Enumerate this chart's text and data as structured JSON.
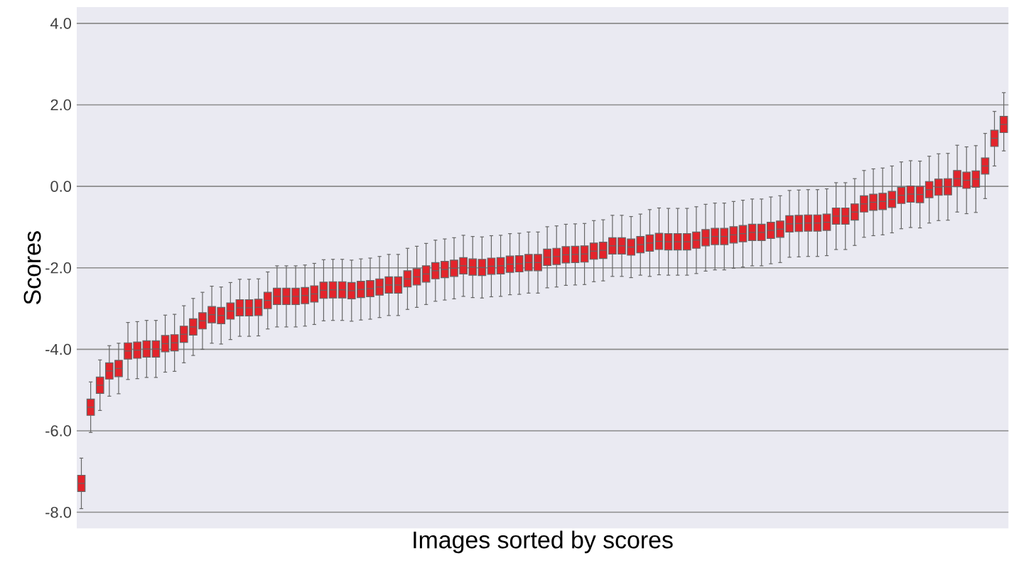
{
  "chart_data": {
    "type": "box",
    "xlabel": "Images sorted by scores",
    "ylabel": "Scores",
    "color": "#e3242b",
    "grid": "y",
    "tick_labels": "y",
    "ylim": [
      -8.4,
      4.4
    ],
    "yticks": [
      {
        "value": -8,
        "label": "-8.0"
      },
      {
        "value": -6,
        "label": "-6.0"
      },
      {
        "value": -4,
        "label": "-4.0"
      },
      {
        "value": -2,
        "label": "-2.0"
      },
      {
        "value": 0,
        "label": "0.0"
      },
      {
        "value": 2,
        "label": "2.0"
      },
      {
        "value": 4,
        "label": "4.0"
      }
    ],
    "categories": [
      null,
      null,
      null,
      null,
      null,
      null,
      null,
      null,
      null,
      null,
      null,
      null,
      null,
      null,
      null,
      null,
      null,
      null,
      null,
      null,
      null,
      null,
      null,
      null,
      null,
      null,
      null,
      null,
      null,
      null,
      null,
      null,
      null,
      null,
      null,
      null,
      null,
      null,
      null,
      null,
      null,
      null,
      null,
      null,
      null,
      null,
      null,
      null,
      null,
      null,
      null,
      null,
      null,
      null,
      null,
      null,
      null,
      null,
      null,
      null,
      null,
      null,
      null,
      null,
      null,
      null,
      null,
      null,
      null,
      null,
      null,
      null,
      null,
      null,
      null,
      null,
      null,
      null,
      null,
      null,
      null,
      null,
      null,
      null,
      null,
      null,
      null,
      null,
      null,
      null,
      null,
      null,
      null,
      null,
      null,
      null,
      null,
      null,
      null,
      null
    ],
    "boxes": [
      {
        "low": -7.91,
        "q1": -7.49,
        "median": -7.29,
        "q3": -7.09,
        "high": -6.67
      },
      {
        "low": -6.04,
        "q1": -5.62,
        "median": -5.42,
        "q3": -5.22,
        "high": -4.8
      },
      {
        "low": -5.5,
        "q1": -5.08,
        "median": -4.88,
        "q3": -4.68,
        "high": -4.26
      },
      {
        "low": -5.15,
        "q1": -4.73,
        "median": -4.53,
        "q3": -4.33,
        "high": -3.91
      },
      {
        "low": -5.09,
        "q1": -4.67,
        "median": -4.47,
        "q3": -4.27,
        "high": -3.85
      },
      {
        "low": -4.74,
        "q1": -4.24,
        "median": -4.04,
        "q3": -3.84,
        "high": -3.34
      },
      {
        "low": -4.72,
        "q1": -4.22,
        "median": -4.02,
        "q3": -3.82,
        "high": -3.32
      },
      {
        "low": -4.69,
        "q1": -4.19,
        "median": -3.99,
        "q3": -3.79,
        "high": -3.29
      },
      {
        "low": -4.69,
        "q1": -4.19,
        "median": -3.99,
        "q3": -3.79,
        "high": -3.29
      },
      {
        "low": -4.56,
        "q1": -4.06,
        "median": -3.86,
        "q3": -3.66,
        "high": -3.16
      },
      {
        "low": -4.54,
        "q1": -4.04,
        "median": -3.84,
        "q3": -3.64,
        "high": -3.14
      },
      {
        "low": -4.33,
        "q1": -3.83,
        "median": -3.63,
        "q3": -3.43,
        "high": -2.93
      },
      {
        "low": -4.15,
        "q1": -3.65,
        "median": -3.45,
        "q3": -3.25,
        "high": -2.75
      },
      {
        "low": -4.0,
        "q1": -3.5,
        "median": -3.3,
        "q3": -3.1,
        "high": -2.6
      },
      {
        "low": -3.85,
        "q1": -3.35,
        "median": -3.15,
        "q3": -2.95,
        "high": -2.45
      },
      {
        "low": -3.87,
        "q1": -3.37,
        "median": -3.17,
        "q3": -2.97,
        "high": -2.47
      },
      {
        "low": -3.76,
        "q1": -3.26,
        "median": -3.06,
        "q3": -2.86,
        "high": -2.36
      },
      {
        "low": -3.68,
        "q1": -3.18,
        "median": -2.98,
        "q3": -2.78,
        "high": -2.28
      },
      {
        "low": -3.68,
        "q1": -3.18,
        "median": -2.98,
        "q3": -2.78,
        "high": -2.28
      },
      {
        "low": -3.67,
        "q1": -3.17,
        "median": -2.97,
        "q3": -2.77,
        "high": -2.27
      },
      {
        "low": -3.5,
        "q1": -3.0,
        "median": -2.8,
        "q3": -2.6,
        "high": -2.1
      },
      {
        "low": -3.45,
        "q1": -2.9,
        "median": -2.7,
        "q3": -2.5,
        "high": -1.95
      },
      {
        "low": -3.45,
        "q1": -2.9,
        "median": -2.7,
        "q3": -2.5,
        "high": -1.95
      },
      {
        "low": -3.45,
        "q1": -2.9,
        "median": -2.7,
        "q3": -2.5,
        "high": -1.95
      },
      {
        "low": -3.43,
        "q1": -2.88,
        "median": -2.68,
        "q3": -2.48,
        "high": -1.93
      },
      {
        "low": -3.39,
        "q1": -2.84,
        "median": -2.64,
        "q3": -2.44,
        "high": -1.89
      },
      {
        "low": -3.3,
        "q1": -2.75,
        "median": -2.55,
        "q3": -2.35,
        "high": -1.8
      },
      {
        "low": -3.29,
        "q1": -2.74,
        "median": -2.54,
        "q3": -2.34,
        "high": -1.79
      },
      {
        "low": -3.29,
        "q1": -2.74,
        "median": -2.54,
        "q3": -2.34,
        "high": -1.79
      },
      {
        "low": -3.31,
        "q1": -2.76,
        "median": -2.56,
        "q3": -2.36,
        "high": -1.81
      },
      {
        "low": -3.28,
        "q1": -2.73,
        "median": -2.53,
        "q3": -2.33,
        "high": -1.78
      },
      {
        "low": -3.26,
        "q1": -2.71,
        "median": -2.51,
        "q3": -2.31,
        "high": -1.76
      },
      {
        "low": -3.22,
        "q1": -2.67,
        "median": -2.47,
        "q3": -2.27,
        "high": -1.72
      },
      {
        "low": -3.17,
        "q1": -2.62,
        "median": -2.42,
        "q3": -2.22,
        "high": -1.67
      },
      {
        "low": -3.17,
        "q1": -2.62,
        "median": -2.42,
        "q3": -2.22,
        "high": -1.67
      },
      {
        "low": -3.02,
        "q1": -2.47,
        "median": -2.27,
        "q3": -2.07,
        "high": -1.52
      },
      {
        "low": -2.97,
        "q1": -2.42,
        "median": -2.22,
        "q3": -2.02,
        "high": -1.47
      },
      {
        "low": -2.9,
        "q1": -2.35,
        "median": -2.15,
        "q3": -1.95,
        "high": -1.4
      },
      {
        "low": -2.82,
        "q1": -2.27,
        "median": -2.07,
        "q3": -1.87,
        "high": -1.32
      },
      {
        "low": -2.79,
        "q1": -2.24,
        "median": -2.04,
        "q3": -1.84,
        "high": -1.29
      },
      {
        "low": -2.76,
        "q1": -2.21,
        "median": -2.01,
        "q3": -1.81,
        "high": -1.26
      },
      {
        "low": -2.7,
        "q1": -2.15,
        "median": -1.95,
        "q3": -1.75,
        "high": -1.2
      },
      {
        "low": -2.73,
        "q1": -2.18,
        "median": -1.98,
        "q3": -1.78,
        "high": -1.23
      },
      {
        "low": -2.74,
        "q1": -2.19,
        "median": -1.99,
        "q3": -1.79,
        "high": -1.24
      },
      {
        "low": -2.71,
        "q1": -2.16,
        "median": -1.96,
        "q3": -1.76,
        "high": -1.21
      },
      {
        "low": -2.7,
        "q1": -2.15,
        "median": -1.95,
        "q3": -1.75,
        "high": -1.2
      },
      {
        "low": -2.66,
        "q1": -2.11,
        "median": -1.91,
        "q3": -1.71,
        "high": -1.16
      },
      {
        "low": -2.65,
        "q1": -2.1,
        "median": -1.9,
        "q3": -1.7,
        "high": -1.15
      },
      {
        "low": -2.62,
        "q1": -2.07,
        "median": -1.87,
        "q3": -1.67,
        "high": -1.12
      },
      {
        "low": -2.62,
        "q1": -2.07,
        "median": -1.87,
        "q3": -1.67,
        "high": -1.12
      },
      {
        "low": -2.49,
        "q1": -1.94,
        "median": -1.74,
        "q3": -1.54,
        "high": -0.99
      },
      {
        "low": -2.47,
        "q1": -1.92,
        "median": -1.72,
        "q3": -1.52,
        "high": -0.97
      },
      {
        "low": -2.43,
        "q1": -1.88,
        "median": -1.68,
        "q3": -1.48,
        "high": -0.93
      },
      {
        "low": -2.42,
        "q1": -1.87,
        "median": -1.67,
        "q3": -1.47,
        "high": -0.92
      },
      {
        "low": -2.41,
        "q1": -1.86,
        "median": -1.66,
        "q3": -1.46,
        "high": -0.91
      },
      {
        "low": -2.34,
        "q1": -1.79,
        "median": -1.59,
        "q3": -1.39,
        "high": -0.84
      },
      {
        "low": -2.32,
        "q1": -1.77,
        "median": -1.57,
        "q3": -1.37,
        "high": -0.82
      },
      {
        "low": -2.21,
        "q1": -1.66,
        "median": -1.46,
        "q3": -1.26,
        "high": -0.71
      },
      {
        "low": -2.21,
        "q1": -1.66,
        "median": -1.46,
        "q3": -1.26,
        "high": -0.71
      },
      {
        "low": -2.24,
        "q1": -1.69,
        "median": -1.49,
        "q3": -1.29,
        "high": -0.74
      },
      {
        "low": -2.18,
        "q1": -1.63,
        "median": -1.43,
        "q3": -1.23,
        "high": -0.68
      },
      {
        "low": -2.21,
        "q1": -1.59,
        "median": -1.39,
        "q3": -1.19,
        "high": -0.57
      },
      {
        "low": -2.17,
        "q1": -1.55,
        "median": -1.35,
        "q3": -1.15,
        "high": -0.53
      },
      {
        "low": -2.18,
        "q1": -1.56,
        "median": -1.36,
        "q3": -1.16,
        "high": -0.54
      },
      {
        "low": -2.18,
        "q1": -1.56,
        "median": -1.36,
        "q3": -1.16,
        "high": -0.54
      },
      {
        "low": -2.18,
        "q1": -1.56,
        "median": -1.36,
        "q3": -1.16,
        "high": -0.54
      },
      {
        "low": -2.14,
        "q1": -1.52,
        "median": -1.32,
        "q3": -1.12,
        "high": -0.5
      },
      {
        "low": -2.08,
        "q1": -1.46,
        "median": -1.26,
        "q3": -1.06,
        "high": -0.44
      },
      {
        "low": -2.05,
        "q1": -1.43,
        "median": -1.23,
        "q3": -1.03,
        "high": -0.41
      },
      {
        "low": -2.05,
        "q1": -1.43,
        "median": -1.23,
        "q3": -1.03,
        "high": -0.41
      },
      {
        "low": -2.01,
        "q1": -1.39,
        "median": -1.19,
        "q3": -0.99,
        "high": -0.37
      },
      {
        "low": -1.98,
        "q1": -1.36,
        "median": -1.16,
        "q3": -0.96,
        "high": -0.34
      },
      {
        "low": -1.95,
        "q1": -1.33,
        "median": -1.13,
        "q3": -0.93,
        "high": -0.31
      },
      {
        "low": -1.95,
        "q1": -1.33,
        "median": -1.13,
        "q3": -0.93,
        "high": -0.31
      },
      {
        "low": -1.9,
        "q1": -1.28,
        "median": -1.08,
        "q3": -0.88,
        "high": -0.26
      },
      {
        "low": -1.87,
        "q1": -1.25,
        "median": -1.05,
        "q3": -0.85,
        "high": -0.23
      },
      {
        "low": -1.74,
        "q1": -1.12,
        "median": -0.92,
        "q3": -0.72,
        "high": -0.1
      },
      {
        "low": -1.73,
        "q1": -1.11,
        "median": -0.91,
        "q3": -0.71,
        "high": -0.09
      },
      {
        "low": -1.72,
        "q1": -1.1,
        "median": -0.9,
        "q3": -0.7,
        "high": -0.08
      },
      {
        "low": -1.72,
        "q1": -1.1,
        "median": -0.9,
        "q3": -0.7,
        "high": -0.08
      },
      {
        "low": -1.7,
        "q1": -1.08,
        "median": -0.88,
        "q3": -0.68,
        "high": -0.06
      },
      {
        "low": -1.55,
        "q1": -0.93,
        "median": -0.73,
        "q3": -0.53,
        "high": 0.09
      },
      {
        "low": -1.55,
        "q1": -0.93,
        "median": -0.73,
        "q3": -0.53,
        "high": 0.09
      },
      {
        "low": -1.45,
        "q1": -0.83,
        "median": -0.63,
        "q3": -0.43,
        "high": 0.19
      },
      {
        "low": -1.25,
        "q1": -0.63,
        "median": -0.43,
        "q3": -0.23,
        "high": 0.39
      },
      {
        "low": -1.21,
        "q1": -0.59,
        "median": -0.39,
        "q3": -0.19,
        "high": 0.43
      },
      {
        "low": -1.19,
        "q1": -0.57,
        "median": -0.37,
        "q3": -0.17,
        "high": 0.45
      },
      {
        "low": -1.14,
        "q1": -0.52,
        "median": -0.32,
        "q3": -0.12,
        "high": 0.5
      },
      {
        "low": -1.04,
        "q1": -0.42,
        "median": -0.22,
        "q3": -0.02,
        "high": 0.6
      },
      {
        "low": -1.01,
        "q1": -0.39,
        "median": -0.19,
        "q3": 0.01,
        "high": 0.63
      },
      {
        "low": -1.02,
        "q1": -0.4,
        "median": -0.2,
        "q3": 0.0,
        "high": 0.62
      },
      {
        "low": -0.9,
        "q1": -0.28,
        "median": -0.08,
        "q3": 0.12,
        "high": 0.74
      },
      {
        "low": -0.84,
        "q1": -0.22,
        "median": -0.02,
        "q3": 0.18,
        "high": 0.8
      },
      {
        "low": -0.83,
        "q1": -0.21,
        "median": -0.01,
        "q3": 0.19,
        "high": 0.81
      },
      {
        "low": -0.63,
        "q1": -0.01,
        "median": 0.19,
        "q3": 0.39,
        "high": 1.01
      },
      {
        "low": -0.67,
        "q1": -0.05,
        "median": 0.15,
        "q3": 0.35,
        "high": 0.97
      },
      {
        "low": -0.64,
        "q1": -0.02,
        "median": 0.18,
        "q3": 0.38,
        "high": 1.0
      },
      {
        "low": -0.3,
        "q1": 0.3,
        "median": 0.5,
        "q3": 0.7,
        "high": 1.3
      },
      {
        "low": 0.5,
        "q1": 0.98,
        "median": 1.18,
        "q3": 1.38,
        "high": 1.84
      },
      {
        "low": 0.87,
        "q1": 1.32,
        "median": 1.52,
        "q3": 1.72,
        "high": 2.3
      }
    ]
  }
}
